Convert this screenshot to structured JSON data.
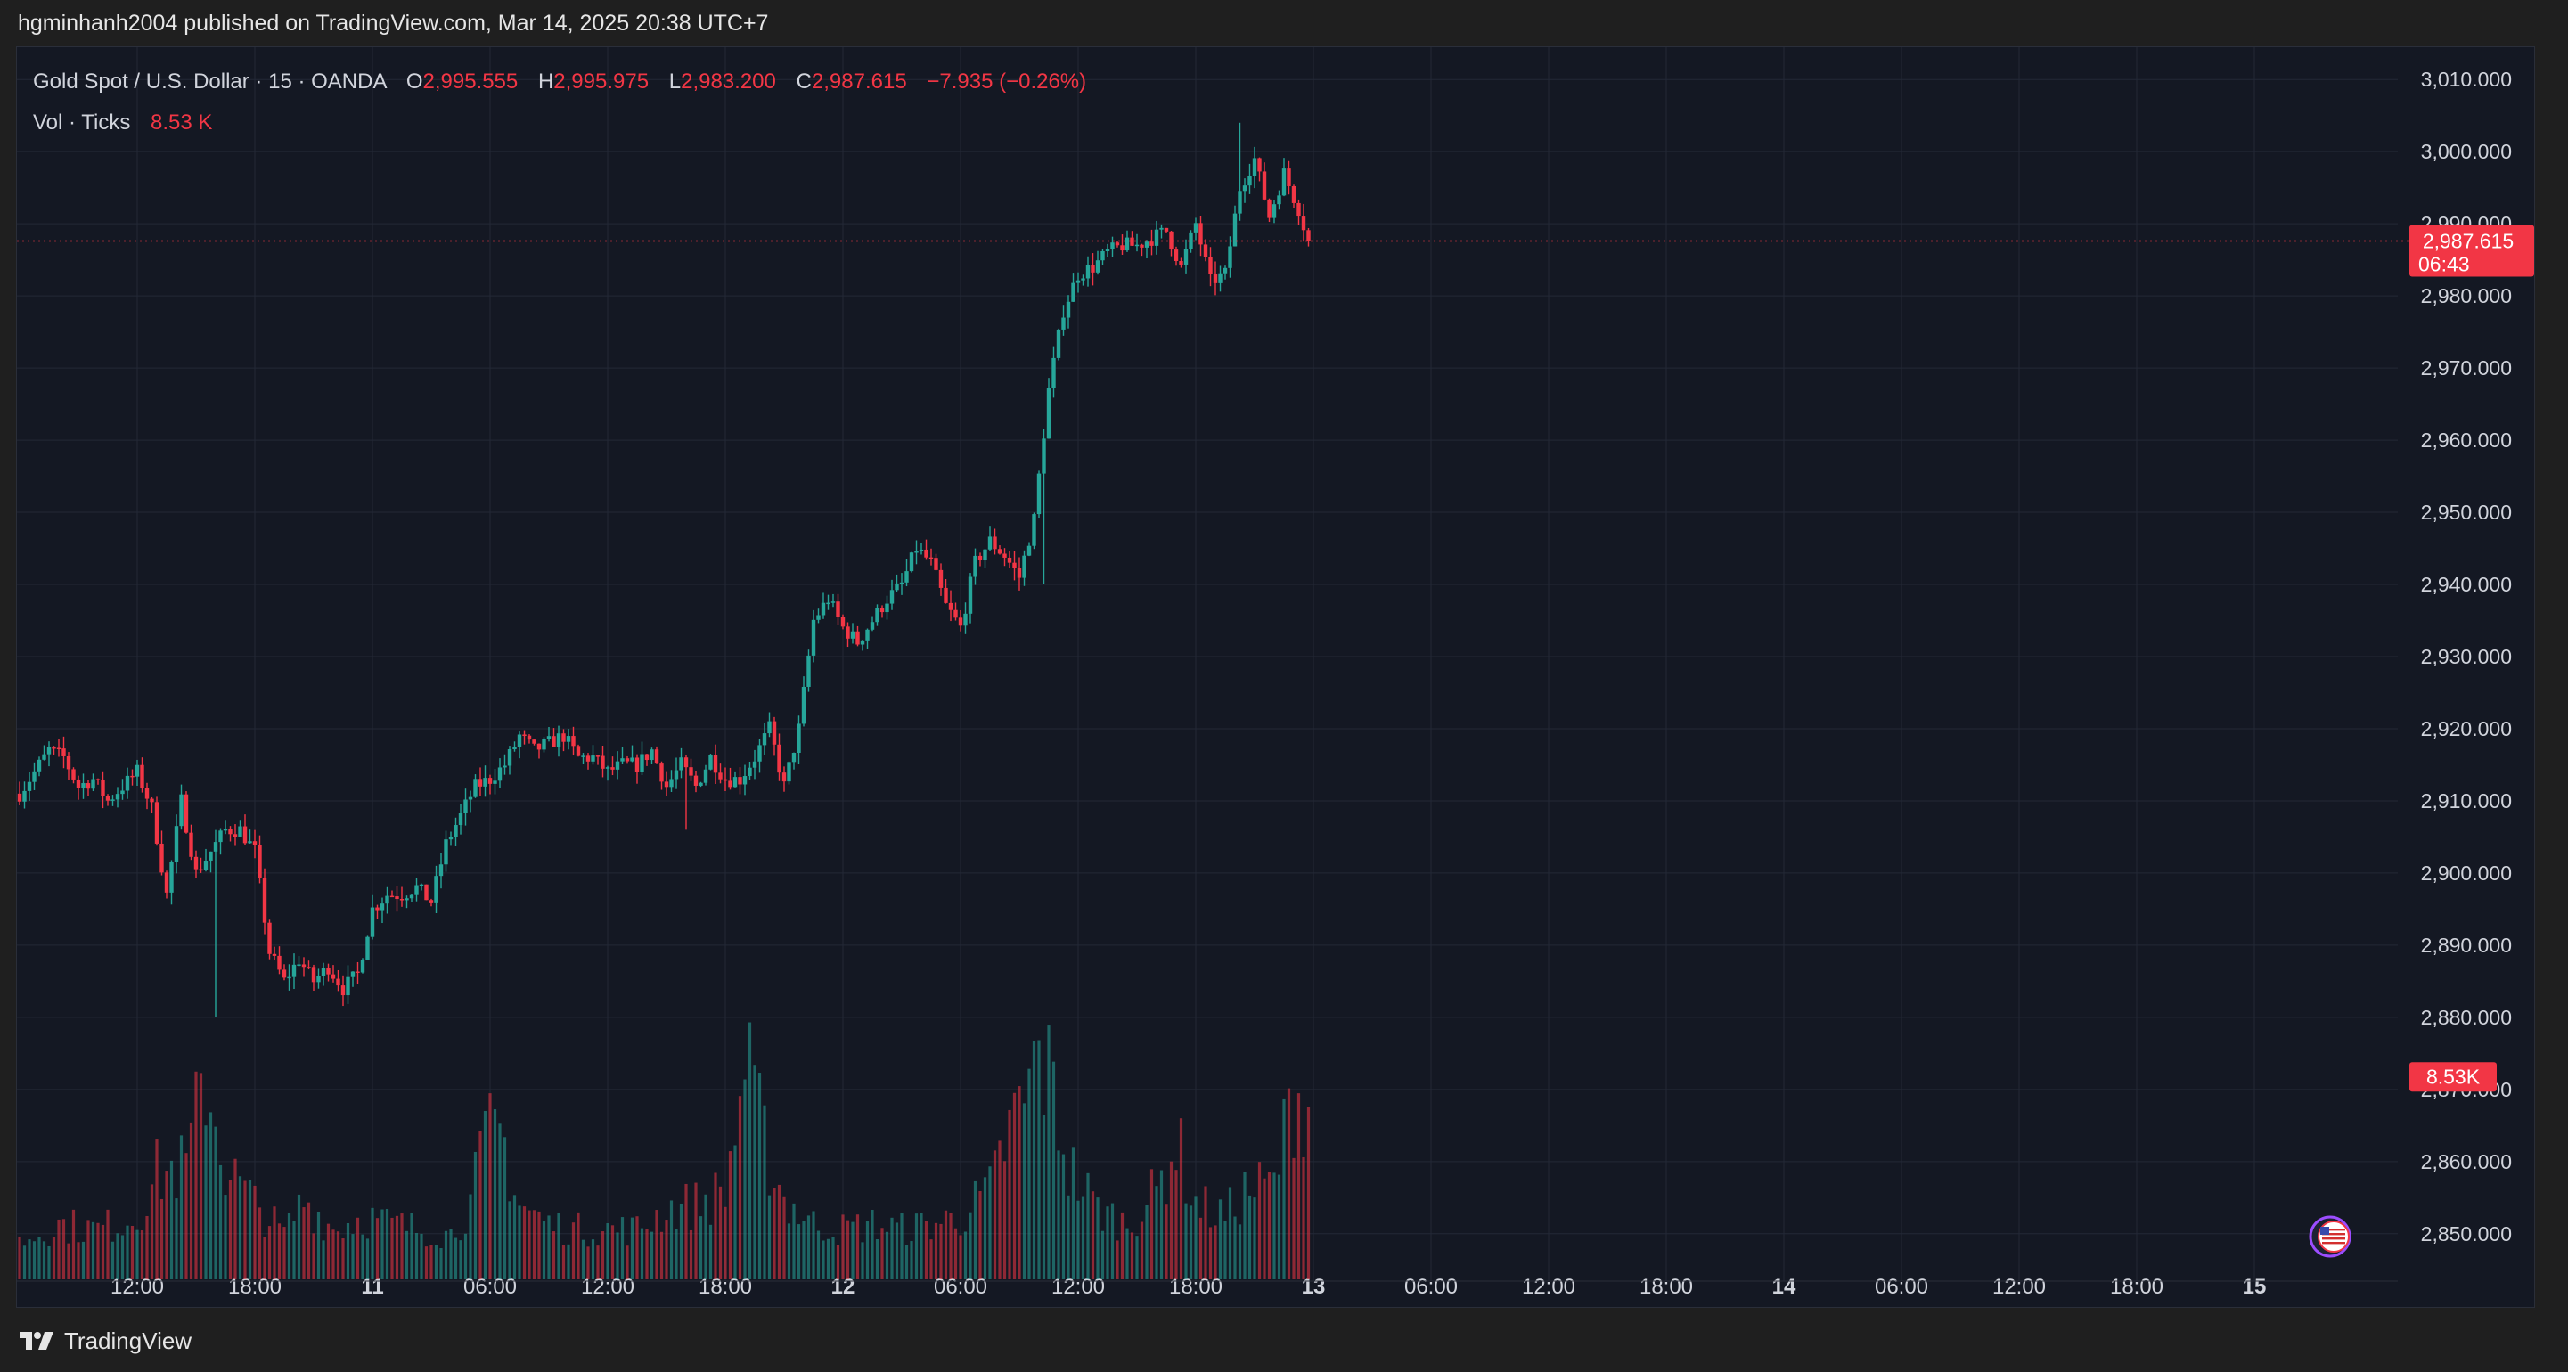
{
  "header": {
    "published_text": "hgminhanh2004 published on TradingView.com, Mar 14, 2025 20:38 UTC+7"
  },
  "legend": {
    "symbol": "Gold Spot / U.S. Dollar · 15 · OANDA",
    "open_label": "O",
    "open": "2,995.555",
    "high_label": "H",
    "high": "2,995.975",
    "low_label": "L",
    "low": "2,983.200",
    "close_label": "C",
    "close": "2,987.615",
    "change": "−7.935 (−0.26%)",
    "vol_label": "Vol · Ticks",
    "vol_value": "8.53 K"
  },
  "footer": {
    "brand": "TradingView",
    "logo_icon": "tradingview-logo-icon"
  },
  "colors": {
    "up": "#26a69a",
    "down": "#f23645",
    "background": "#141823",
    "grid": "#232836",
    "text": "#d1d4dc"
  },
  "chart_data": {
    "type": "candlestick",
    "symbol": "Gold Spot / U.S. Dollar",
    "interval": "15",
    "source": "OANDA",
    "ylim": [
      2848,
      3012
    ],
    "y_ticks": [
      "3,010.000",
      "3,000.000",
      "2,990.000",
      "2,980.000",
      "2,970.000",
      "2,960.000",
      "2,950.000",
      "2,940.000",
      "2,930.000",
      "2,920.000",
      "2,910.000",
      "2,900.000",
      "2,890.000",
      "2,880.000",
      "2,870.000",
      "2,860.000",
      "2,850.000"
    ],
    "x_ticks": [
      {
        "label": "12:00",
        "bold": false
      },
      {
        "label": "18:00",
        "bold": false
      },
      {
        "label": "11",
        "bold": true
      },
      {
        "label": "06:00",
        "bold": false
      },
      {
        "label": "12:00",
        "bold": false
      },
      {
        "label": "18:00",
        "bold": false
      },
      {
        "label": "12",
        "bold": true
      },
      {
        "label": "06:00",
        "bold": false
      },
      {
        "label": "12:00",
        "bold": false
      },
      {
        "label": "18:00",
        "bold": false
      },
      {
        "label": "13",
        "bold": true
      },
      {
        "label": "06:00",
        "bold": false
      },
      {
        "label": "12:00",
        "bold": false
      },
      {
        "label": "18:00",
        "bold": false
      },
      {
        "label": "14",
        "bold": true
      },
      {
        "label": "06:00",
        "bold": false
      },
      {
        "label": "12:00",
        "bold": false
      },
      {
        "label": "18:00",
        "bold": false
      },
      {
        "label": "15",
        "bold": true
      }
    ],
    "price_path": [
      [
        0,
        2911
      ],
      [
        3,
        2914
      ],
      [
        6,
        2917
      ],
      [
        9,
        2916
      ],
      [
        12,
        2912
      ],
      [
        15,
        2913
      ],
      [
        18,
        2910
      ],
      [
        21,
        2912
      ],
      [
        24,
        2914
      ],
      [
        27,
        2909
      ],
      [
        30,
        2897
      ],
      [
        33,
        2910
      ],
      [
        36,
        2900
      ],
      [
        39,
        2903
      ],
      [
        42,
        2906
      ],
      [
        45,
        2906
      ],
      [
        48,
        2903
      ],
      [
        51,
        2889
      ],
      [
        54,
        2885
      ],
      [
        57,
        2888
      ],
      [
        60,
        2885
      ],
      [
        63,
        2887
      ],
      [
        66,
        2884
      ],
      [
        69,
        2886
      ],
      [
        72,
        2895
      ],
      [
        75,
        2897
      ],
      [
        78,
        2897
      ],
      [
        81,
        2898
      ],
      [
        84,
        2896
      ],
      [
        87,
        2904
      ],
      [
        90,
        2908
      ],
      [
        93,
        2912
      ],
      [
        96,
        2913
      ],
      [
        99,
        2915
      ],
      [
        102,
        2919
      ],
      [
        105,
        2917
      ],
      [
        108,
        2918
      ],
      [
        111,
        2919
      ],
      [
        114,
        2916
      ],
      [
        117,
        2916
      ],
      [
        120,
        2914
      ],
      [
        123,
        2915
      ],
      [
        126,
        2915
      ],
      [
        129,
        2917
      ],
      [
        132,
        2912
      ],
      [
        135,
        2915
      ],
      [
        138,
        2912
      ],
      [
        141,
        2916
      ],
      [
        144,
        2913
      ],
      [
        147,
        2913
      ],
      [
        150,
        2916
      ],
      [
        153,
        2920
      ],
      [
        156,
        2912
      ],
      [
        159,
        2920
      ],
      [
        162,
        2935
      ],
      [
        165,
        2938
      ],
      [
        168,
        2934
      ],
      [
        171,
        2932
      ],
      [
        174,
        2935
      ],
      [
        177,
        2938
      ],
      [
        180,
        2940
      ],
      [
        183,
        2945
      ],
      [
        186,
        2943
      ],
      [
        189,
        2937
      ],
      [
        192,
        2934
      ],
      [
        195,
        2943
      ],
      [
        198,
        2946
      ],
      [
        201,
        2944
      ],
      [
        204,
        2941
      ],
      [
        207,
        2949
      ],
      [
        210,
        2967
      ],
      [
        213,
        2978
      ],
      [
        216,
        2983
      ],
      [
        219,
        2984
      ],
      [
        222,
        2986
      ],
      [
        225,
        2987
      ],
      [
        228,
        2987
      ],
      [
        231,
        2988
      ],
      [
        234,
        2989
      ],
      [
        237,
        2984
      ],
      [
        240,
        2990
      ],
      [
        243,
        2982
      ],
      [
        246,
        2983
      ],
      [
        249,
        2995
      ],
      [
        252,
        2999
      ],
      [
        255,
        2991
      ],
      [
        258,
        2997
      ],
      [
        261,
        2992
      ],
      [
        263,
        2987.615
      ]
    ],
    "high_low_markers": [
      {
        "x": 40,
        "price": 2880
      },
      {
        "x": 136,
        "price": 2906
      },
      {
        "x": 209,
        "price": 2940
      },
      {
        "x": 249,
        "price": 3004
      }
    ],
    "volume_path": [
      [
        0,
        0.15
      ],
      [
        8,
        0.22
      ],
      [
        16,
        0.2
      ],
      [
        24,
        0.25
      ],
      [
        28,
        0.42
      ],
      [
        34,
        0.45
      ],
      [
        38,
        0.82
      ],
      [
        42,
        0.45
      ],
      [
        48,
        0.3
      ],
      [
        54,
        0.18
      ],
      [
        58,
        0.32
      ],
      [
        64,
        0.2
      ],
      [
        70,
        0.25
      ],
      [
        76,
        0.22
      ],
      [
        82,
        0.2
      ],
      [
        88,
        0.18
      ],
      [
        92,
        0.3
      ],
      [
        95,
        0.55
      ],
      [
        98,
        0.6
      ],
      [
        102,
        0.3
      ],
      [
        108,
        0.22
      ],
      [
        114,
        0.2
      ],
      [
        120,
        0.2
      ],
      [
        126,
        0.2
      ],
      [
        132,
        0.28
      ],
      [
        138,
        0.3
      ],
      [
        144,
        0.35
      ],
      [
        148,
        0.85
      ],
      [
        152,
        0.55
      ],
      [
        156,
        0.32
      ],
      [
        162,
        0.22
      ],
      [
        168,
        0.2
      ],
      [
        174,
        0.22
      ],
      [
        180,
        0.2
      ],
      [
        186,
        0.22
      ],
      [
        192,
        0.25
      ],
      [
        198,
        0.35
      ],
      [
        202,
        0.6
      ],
      [
        205,
        0.7
      ],
      [
        208,
        0.9
      ],
      [
        211,
        0.75
      ],
      [
        214,
        0.45
      ],
      [
        220,
        0.28
      ],
      [
        226,
        0.22
      ],
      [
        232,
        0.35
      ],
      [
        236,
        0.55
      ],
      [
        240,
        0.3
      ],
      [
        246,
        0.25
      ],
      [
        250,
        0.35
      ],
      [
        256,
        0.38
      ],
      [
        260,
        0.75
      ],
      [
        263,
        0.7
      ]
    ],
    "last_price": {
      "label": "2,987.615",
      "countdown": "06:43",
      "color": "#f23645"
    },
    "last_volume": {
      "label": "8.53K",
      "color": "#f23645"
    },
    "event_marker": {
      "icon": "us-flag-icon"
    }
  }
}
